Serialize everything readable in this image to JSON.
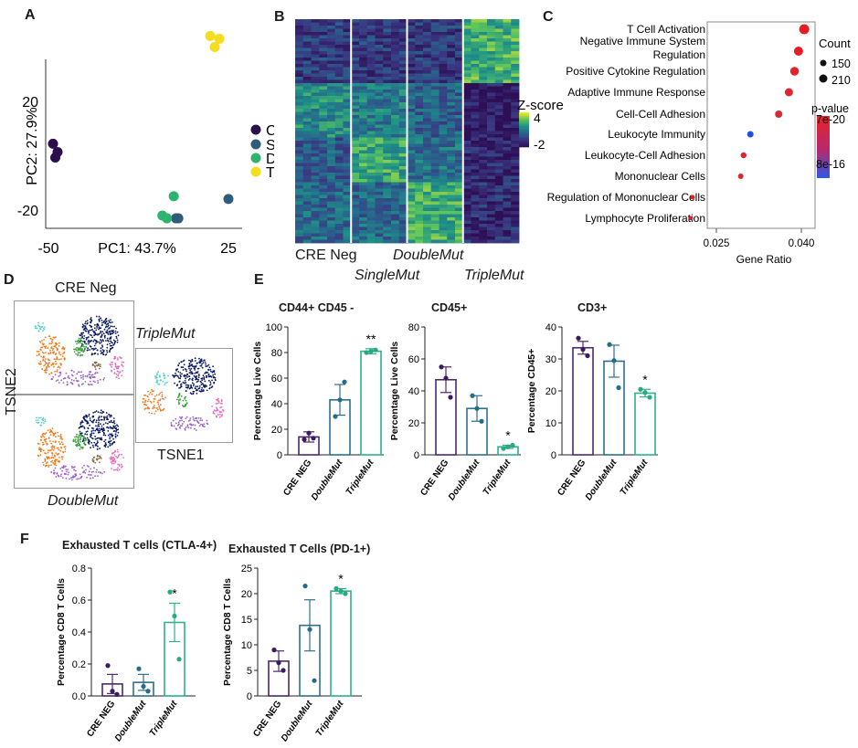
{
  "panels": {
    "A": "A",
    "B": "B",
    "C": "C",
    "D": "D",
    "E": "E",
    "F": "F"
  },
  "pca": {
    "xlabel": "PC1: 43.7%",
    "ylabel": "PC2: 27.9%",
    "xticks": [
      "-50",
      "25"
    ],
    "yticks": [
      "20",
      "-20"
    ],
    "legend": [
      {
        "label": "CN",
        "color": "#2b0f4d"
      },
      {
        "label": "SM",
        "color": "#2e5c7a"
      },
      {
        "label": "DM",
        "color": "#2db36e"
      },
      {
        "label": "TM",
        "color": "#f4dd1c"
      }
    ],
    "points": [
      {
        "group": "CN",
        "x": -50,
        "y": 5
      },
      {
        "group": "CN",
        "x": -49,
        "y": 0
      },
      {
        "group": "CN",
        "x": -48,
        "y": 2
      },
      {
        "group": "SM",
        "x": 4,
        "y": -22
      },
      {
        "group": "SM",
        "x": 5,
        "y": -22
      },
      {
        "group": "SM",
        "x": 27,
        "y": -15
      },
      {
        "group": "DM",
        "x": -2,
        "y": -21
      },
      {
        "group": "DM",
        "x": 0,
        "y": -22
      },
      {
        "group": "DM",
        "x": 3,
        "y": -14
      },
      {
        "group": "TM",
        "x": 19,
        "y": 44
      },
      {
        "group": "TM",
        "x": 21,
        "y": 40
      },
      {
        "group": "TM",
        "x": 23,
        "y": 43
      }
    ]
  },
  "heatmap": {
    "legend_title": "Z-score",
    "legend_max": "4",
    "legend_min": "-2",
    "groups": [
      {
        "label": "CRE Neg",
        "italic": false
      },
      {
        "label": "SingleMut",
        "italic": true
      },
      {
        "label": "DoubleMut",
        "italic": true
      },
      {
        "label": "TripleMut",
        "italic": true
      }
    ]
  },
  "go": {
    "xlabel": "Gene Ratio",
    "xticks": [
      "0.025",
      "0.040"
    ],
    "count_title": "Count",
    "count_labels": [
      "150",
      "210"
    ],
    "pvalue_title": "p-value",
    "pvalue_top": "7e-20",
    "pvalue_bottom": "8e-16",
    "terms": [
      {
        "label": "T Cell Activation",
        "label2": "",
        "ratio": 0.0405,
        "color": "#e31f26",
        "size": 210
      },
      {
        "label": "Negative Immune System",
        "label2": "Regulation",
        "ratio": 0.0395,
        "color": "#e31f26",
        "size": 200
      },
      {
        "label": "Positive Cytokine Regulation",
        "label2": "",
        "ratio": 0.0388,
        "color": "#e3222a",
        "size": 195
      },
      {
        "label": "Adaptive Immune Response",
        "label2": "",
        "ratio": 0.0378,
        "color": "#e02530",
        "size": 190
      },
      {
        "label": "Cell-Cell Adhesion",
        "label2": "",
        "ratio": 0.036,
        "color": "#dc2833",
        "size": 180
      },
      {
        "label": "Leukocyte Immunity",
        "label2": "",
        "ratio": 0.031,
        "color": "#1e4fe0",
        "size": 170
      },
      {
        "label": "Leukocyte-Cell Adhesion",
        "label2": "",
        "ratio": 0.0298,
        "color": "#de2630",
        "size": 165
      },
      {
        "label": "Mononuclear Cells",
        "label2": "",
        "ratio": 0.0293,
        "color": "#de2630",
        "size": 160
      },
      {
        "label": "Regulation of Mononuclear Cells",
        "label2": "",
        "ratio": 0.0208,
        "color": "#e31f26",
        "size": 150
      },
      {
        "label": "Lymphocyte Proliferation",
        "label2": "",
        "ratio": 0.0205,
        "color": "#e31f26",
        "size": 145
      }
    ]
  },
  "tsne": {
    "crene_label": "CRE Neg",
    "doublemut_label": "DoubleMut",
    "triplemut_label": "TripleMut",
    "xlabel": "TSNE1",
    "ylabel": "TSNE2"
  },
  "bar_categories": [
    "CRE NEG",
    "DoubleMut",
    "TripleMut"
  ],
  "bar_colors": [
    "#4a2a6b",
    "#2f6f89",
    "#2fb08a"
  ],
  "bar_point_colors": [
    "#3a1b5e",
    "#246d88",
    "#2aa87f"
  ],
  "chart_data": [
    {
      "type": "bar",
      "title": "CD44+ CD45 -",
      "ylabel": "Percentage Live Cells",
      "categories": [
        "CRE NEG",
        "DoubleMut",
        "TripleMut"
      ],
      "values": [
        14,
        43,
        81
      ],
      "errors": [
        4,
        12,
        2
      ],
      "ylim": [
        0,
        100
      ],
      "yticks": [
        "0",
        "20",
        "40",
        "60",
        "80",
        "100"
      ],
      "points": [
        [
          12,
          17,
          13
        ],
        [
          30,
          43,
          57
        ],
        [
          80,
          81,
          82
        ]
      ],
      "sig": [
        "",
        "",
        "**"
      ]
    },
    {
      "type": "bar",
      "title": "CD45+",
      "ylabel": "Percentage Live Cells",
      "categories": [
        "CRE NEG",
        "DoubleMut",
        "TripleMut"
      ],
      "values": [
        47,
        29,
        5
      ],
      "errors": [
        8,
        8,
        1
      ],
      "ylim": [
        0,
        80
      ],
      "yticks": [
        "0",
        "20",
        "40",
        "60",
        "80"
      ],
      "points": [
        [
          55,
          48,
          36
        ],
        [
          37,
          29,
          21
        ],
        [
          4,
          5,
          6
        ]
      ],
      "sig": [
        "",
        "",
        "*"
      ]
    },
    {
      "type": "bar",
      "title": "CD3+",
      "ylabel": "Percentage CD45+",
      "categories": [
        "CRE NEG",
        "DoubleMut",
        "TripleMut"
      ],
      "values": [
        33.5,
        29.3,
        19.3
      ],
      "errors": [
        2,
        5,
        1.2
      ],
      "ylim": [
        0,
        40
      ],
      "yticks": [
        "0",
        "10",
        "20",
        "30",
        "40"
      ],
      "points": [
        [
          36.5,
          33,
          31
        ],
        [
          34.5,
          29.5,
          21
        ],
        [
          20.5,
          19.5,
          18
        ]
      ],
      "sig": [
        "",
        "",
        "*"
      ]
    },
    {
      "type": "bar",
      "title": "Exhausted T cells (CTLA-4+)",
      "ylabel": "Percentage CD8 T Cells",
      "categories": [
        "CRE NEG",
        "DoubleMut",
        "TripleMut"
      ],
      "values": [
        0.075,
        0.085,
        0.46
      ],
      "errors": [
        0.06,
        0.05,
        0.12
      ],
      "ylim": [
        0,
        0.8
      ],
      "yticks": [
        "0.0",
        "0.2",
        "0.4",
        "0.6",
        "0.8"
      ],
      "points": [
        [
          0.19,
          0.03,
          0.01
        ],
        [
          0.17,
          0.06,
          0.03
        ],
        [
          0.65,
          0.5,
          0.23
        ]
      ],
      "sig": [
        "",
        "",
        "*"
      ]
    },
    {
      "type": "bar",
      "title": "Exhausted T Cells (PD-1+)",
      "ylabel": "Percentage CD8 T Cells",
      "categories": [
        "CRE NEG",
        "DoubleMut",
        "TripleMut"
      ],
      "values": [
        6.8,
        13.8,
        20.5
      ],
      "errors": [
        2,
        5,
        0.5
      ],
      "ylim": [
        0,
        25
      ],
      "yticks": [
        "0",
        "5",
        "10",
        "15",
        "20",
        "25"
      ],
      "points": [
        [
          9,
          6.5,
          5
        ],
        [
          21.5,
          13,
          3
        ],
        [
          21,
          20.5,
          20
        ]
      ],
      "sig": [
        "",
        "",
        "*"
      ]
    }
  ]
}
